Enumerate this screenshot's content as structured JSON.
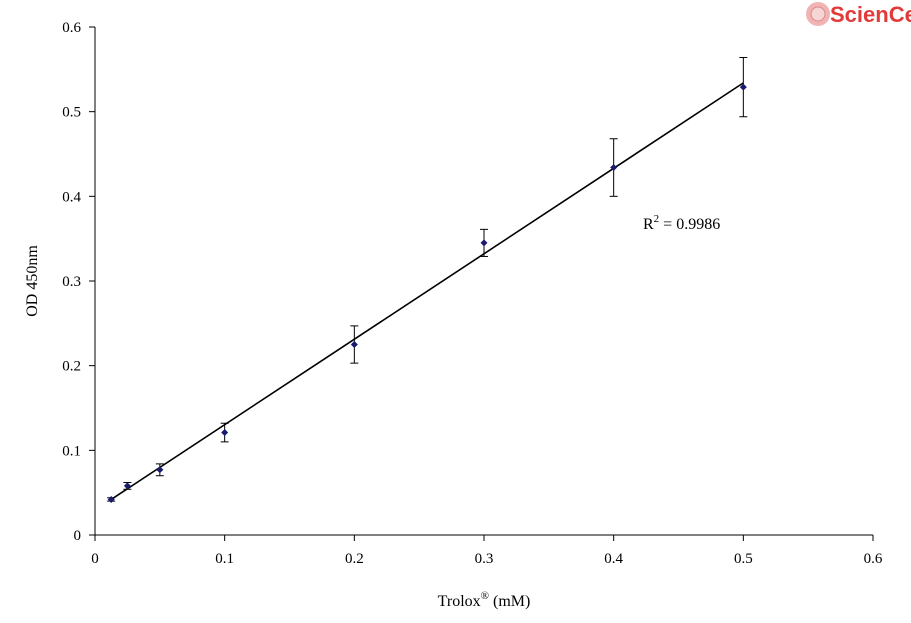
{
  "chart_data": {
    "type": "scatter",
    "xlabel": "Trolox",
    "xlabel_sup": "®",
    "xlabel_unit": " (mM)",
    "ylabel": "OD 450nm",
    "xlim": [
      0,
      0.6
    ],
    "ylim": [
      0,
      0.6
    ],
    "x_ticks": [
      "0",
      "0.1",
      "0.2",
      "0.3",
      "0.4",
      "0.5",
      "0.6"
    ],
    "y_ticks": [
      "0",
      "0.1",
      "0.2",
      "0.3",
      "0.4",
      "0.5",
      "0.6"
    ],
    "grid": false,
    "series": [
      {
        "x": [
          0.0125,
          0.025,
          0.05,
          0.1,
          0.2,
          0.3,
          0.4,
          0.5
        ],
        "y": [
          0.042,
          0.058,
          0.077,
          0.121,
          0.225,
          0.345,
          0.434,
          0.529
        ],
        "error": [
          0.002,
          0.004,
          0.007,
          0.011,
          0.022,
          0.016,
          0.034,
          0.035
        ],
        "color": "#1a1a6e"
      }
    ],
    "trendline": {
      "x": [
        0.0125,
        0.5
      ],
      "y": [
        0.042,
        0.534
      ]
    },
    "annotation": {
      "base": "R",
      "sup": "2",
      "rest": " = 0.9986"
    }
  },
  "logo": {
    "text": "ScienCell",
    "color": "#e23a3a"
  }
}
